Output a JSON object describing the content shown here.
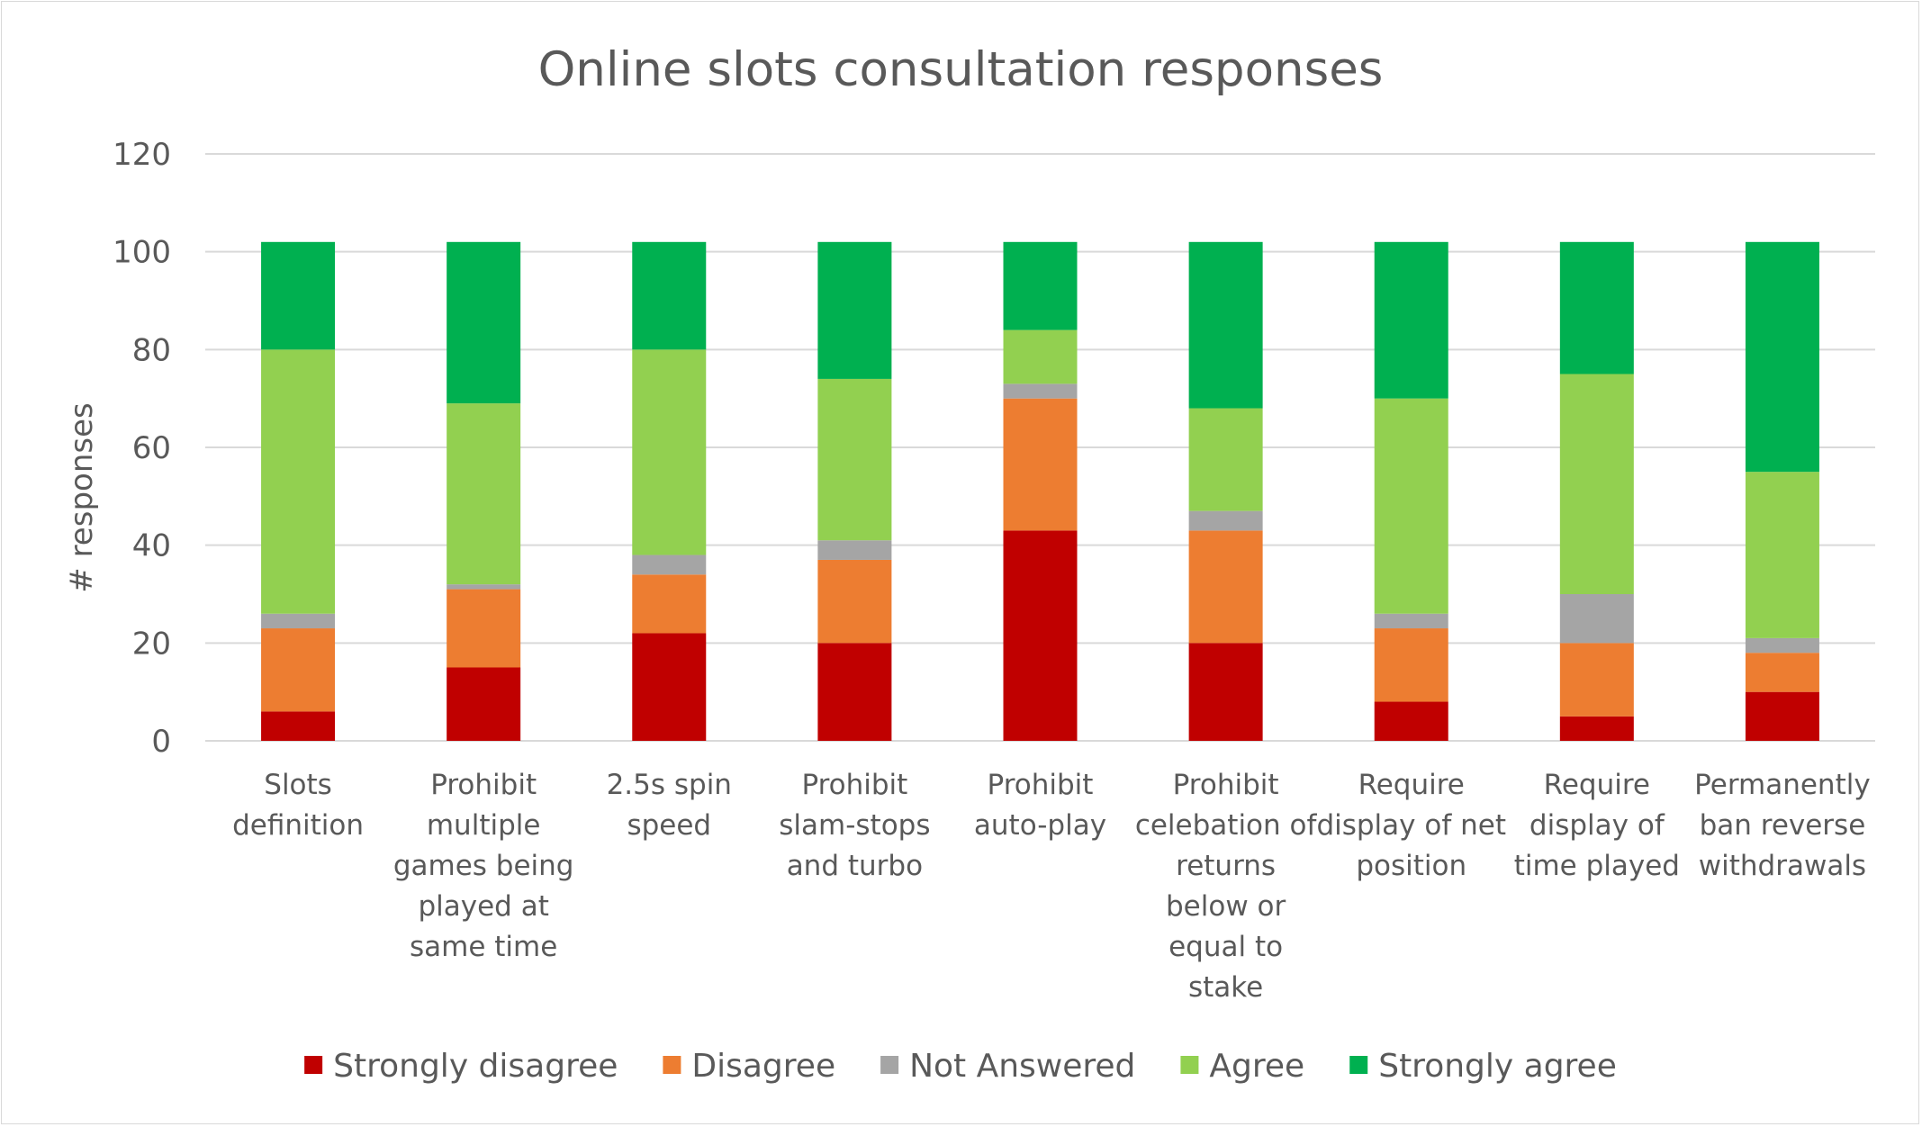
{
  "chart_data": {
    "type": "bar",
    "stacked": true,
    "title": "Online slots consultation responses",
    "xlabel": "",
    "ylabel": "# responses",
    "ylim": [
      0,
      120
    ],
    "yticks": [
      0,
      20,
      40,
      60,
      80,
      100,
      120
    ],
    "grid": true,
    "legend_position": "bottom",
    "categories": [
      [
        "Slots",
        "definition"
      ],
      [
        "Prohibit",
        "multiple",
        "games being",
        "played at",
        "same time"
      ],
      [
        "2.5s spin",
        "speed"
      ],
      [
        "Prohibit",
        "slam-stops",
        "and turbo"
      ],
      [
        "Prohibit",
        "auto-play"
      ],
      [
        "Prohibit",
        "celebation of",
        "returns",
        "below or",
        "equal to",
        "stake"
      ],
      [
        "Require",
        "display of net",
        "position"
      ],
      [
        "Require",
        "display of",
        "time played"
      ],
      [
        "Permanently",
        "ban reverse",
        "withdrawals"
      ]
    ],
    "series": [
      {
        "name": "Strongly disagree",
        "color": "#c00000",
        "values": [
          6,
          15,
          22,
          20,
          43,
          20,
          8,
          5,
          10
        ]
      },
      {
        "name": "Disagree",
        "color": "#ed7d31",
        "values": [
          17,
          16,
          12,
          17,
          27,
          23,
          15,
          15,
          8
        ]
      },
      {
        "name": "Not Answered",
        "color": "#a5a5a5",
        "values": [
          3,
          1,
          4,
          4,
          3,
          4,
          3,
          10,
          3
        ]
      },
      {
        "name": "Agree",
        "color": "#92d050",
        "values": [
          54,
          37,
          42,
          33,
          11,
          21,
          44,
          45,
          34
        ]
      },
      {
        "name": "Strongly agree",
        "color": "#00b050",
        "values": [
          22,
          33,
          22,
          28,
          18,
          34,
          32,
          27,
          47
        ]
      }
    ]
  }
}
